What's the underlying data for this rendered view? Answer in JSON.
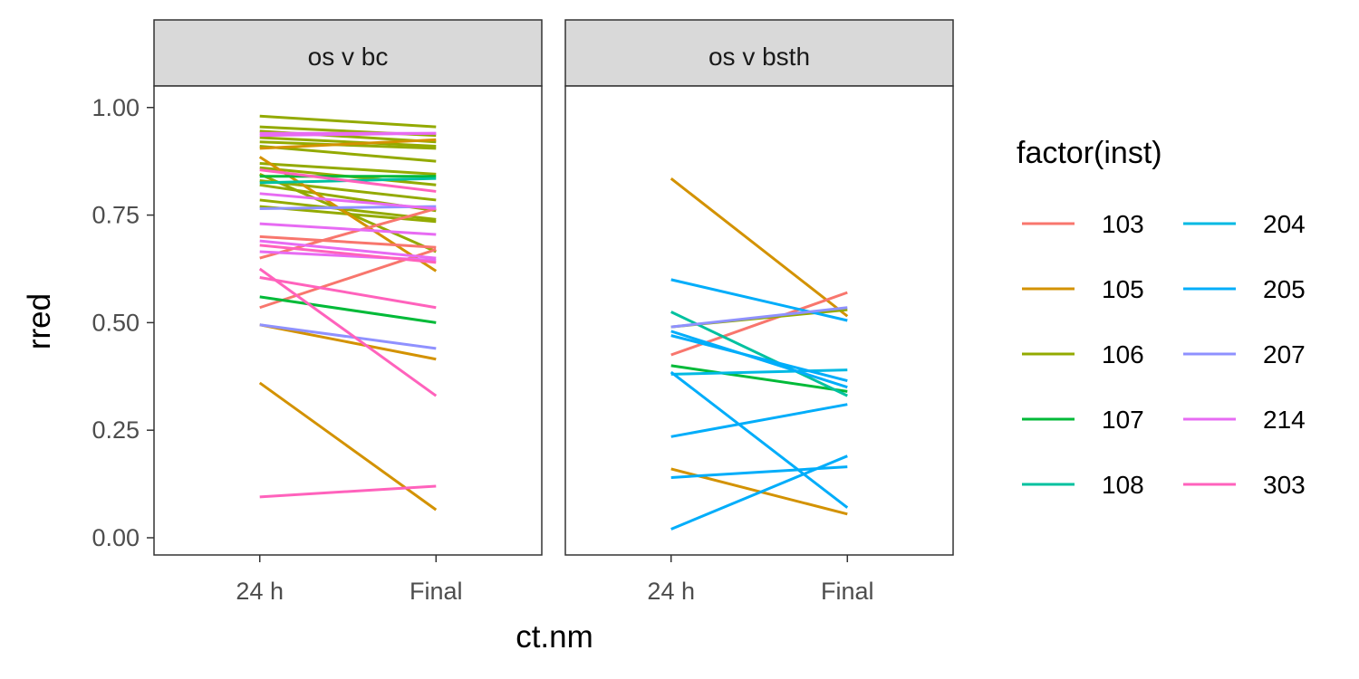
{
  "chart_data": {
    "type": "line",
    "xlabel": "ct.nm",
    "ylabel": "rred",
    "categories": [
      "24 h",
      "Final"
    ],
    "ylim": [
      -0.04,
      1.05
    ],
    "yticks": [
      0.0,
      0.25,
      0.5,
      0.75,
      1.0
    ],
    "ytick_labels": [
      "0.00",
      "0.25",
      "0.50",
      "0.75",
      "1.00"
    ],
    "grid": false,
    "legend": {
      "title": "factor(inst)",
      "placement": "right",
      "columns": 2,
      "entries": [
        {
          "label": "103",
          "color": "#F8766D"
        },
        {
          "label": "105",
          "color": "#D39200"
        },
        {
          "label": "106",
          "color": "#93AA00"
        },
        {
          "label": "107",
          "color": "#00BA38"
        },
        {
          "label": "108",
          "color": "#00C19F"
        },
        {
          "label": "204",
          "color": "#00B9E3"
        },
        {
          "label": "205",
          "color": "#00ADFA"
        },
        {
          "label": "207",
          "color": "#8F91FF"
        },
        {
          "label": "214",
          "color": "#E76BF3"
        },
        {
          "label": "303",
          "color": "#FF62BC"
        }
      ]
    },
    "panels": [
      {
        "title": "os v bc",
        "series": [
          {
            "inst": "106",
            "values": [
              0.98,
              0.955
            ]
          },
          {
            "inst": "106",
            "values": [
              0.955,
              0.935
            ]
          },
          {
            "inst": "106",
            "values": [
              0.945,
              0.92
            ]
          },
          {
            "inst": "106",
            "values": [
              0.93,
              0.91
            ]
          },
          {
            "inst": "106",
            "values": [
              0.92,
              0.905
            ]
          },
          {
            "inst": "106",
            "values": [
              0.91,
              0.875
            ]
          },
          {
            "inst": "106",
            "values": [
              0.87,
              0.845
            ]
          },
          {
            "inst": "106",
            "values": [
              0.86,
              0.82
            ]
          },
          {
            "inst": "106",
            "values": [
              0.83,
              0.785
            ]
          },
          {
            "inst": "106",
            "values": [
              0.82,
              0.76
            ]
          },
          {
            "inst": "106",
            "values": [
              0.785,
              0.74
            ]
          },
          {
            "inst": "106",
            "values": [
              0.77,
              0.735
            ]
          },
          {
            "inst": "106",
            "values": [
              0.845,
              0.665
            ]
          },
          {
            "inst": "105",
            "values": [
              0.885,
              0.62
            ]
          },
          {
            "inst": "105",
            "values": [
              0.905,
              0.925
            ]
          },
          {
            "inst": "105",
            "values": [
              0.495,
              0.415
            ]
          },
          {
            "inst": "105",
            "values": [
              0.36,
              0.065
            ]
          },
          {
            "inst": "103",
            "values": [
              0.535,
              0.67
            ]
          },
          {
            "inst": "103",
            "values": [
              0.65,
              0.765
            ]
          },
          {
            "inst": "103",
            "values": [
              0.7,
              0.675
            ]
          },
          {
            "inst": "107",
            "values": [
              0.84,
              0.84
            ]
          },
          {
            "inst": "107",
            "values": [
              0.56,
              0.5
            ]
          },
          {
            "inst": "108",
            "values": [
              0.825,
              0.835
            ]
          },
          {
            "inst": "207",
            "values": [
              0.765,
              0.77
            ]
          },
          {
            "inst": "207",
            "values": [
              0.495,
              0.44
            ]
          },
          {
            "inst": "214",
            "values": [
              0.94,
              0.94
            ]
          },
          {
            "inst": "214",
            "values": [
              0.935,
              0.94
            ]
          },
          {
            "inst": "214",
            "values": [
              0.8,
              0.765
            ]
          },
          {
            "inst": "214",
            "values": [
              0.73,
              0.705
            ]
          },
          {
            "inst": "214",
            "values": [
              0.69,
              0.65
            ]
          },
          {
            "inst": "214",
            "values": [
              0.665,
              0.645
            ]
          },
          {
            "inst": "303",
            "values": [
              0.855,
              0.805
            ]
          },
          {
            "inst": "303",
            "values": [
              0.68,
              0.64
            ]
          },
          {
            "inst": "303",
            "values": [
              0.605,
              0.535
            ]
          },
          {
            "inst": "303",
            "values": [
              0.625,
              0.33
            ]
          },
          {
            "inst": "303",
            "values": [
              0.095,
              0.12
            ]
          }
        ]
      },
      {
        "title": "os v bsth",
        "series": [
          {
            "inst": "105",
            "values": [
              0.835,
              0.515
            ]
          },
          {
            "inst": "105",
            "values": [
              0.16,
              0.055
            ]
          },
          {
            "inst": "103",
            "values": [
              0.425,
              0.57
            ]
          },
          {
            "inst": "106",
            "values": [
              0.49,
              0.53
            ]
          },
          {
            "inst": "107",
            "values": [
              0.4,
              0.34
            ]
          },
          {
            "inst": "108",
            "values": [
              0.525,
              0.33
            ]
          },
          {
            "inst": "204",
            "values": [
              0.38,
              0.39
            ]
          },
          {
            "inst": "205",
            "values": [
              0.6,
              0.505
            ]
          },
          {
            "inst": "205",
            "values": [
              0.48,
              0.35
            ]
          },
          {
            "inst": "205",
            "values": [
              0.47,
              0.365
            ]
          },
          {
            "inst": "205",
            "values": [
              0.385,
              0.07
            ]
          },
          {
            "inst": "205",
            "values": [
              0.235,
              0.31
            ]
          },
          {
            "inst": "205",
            "values": [
              0.14,
              0.165
            ]
          },
          {
            "inst": "205",
            "values": [
              0.02,
              0.19
            ]
          },
          {
            "inst": "207",
            "values": [
              0.49,
              0.535
            ]
          }
        ]
      }
    ]
  }
}
